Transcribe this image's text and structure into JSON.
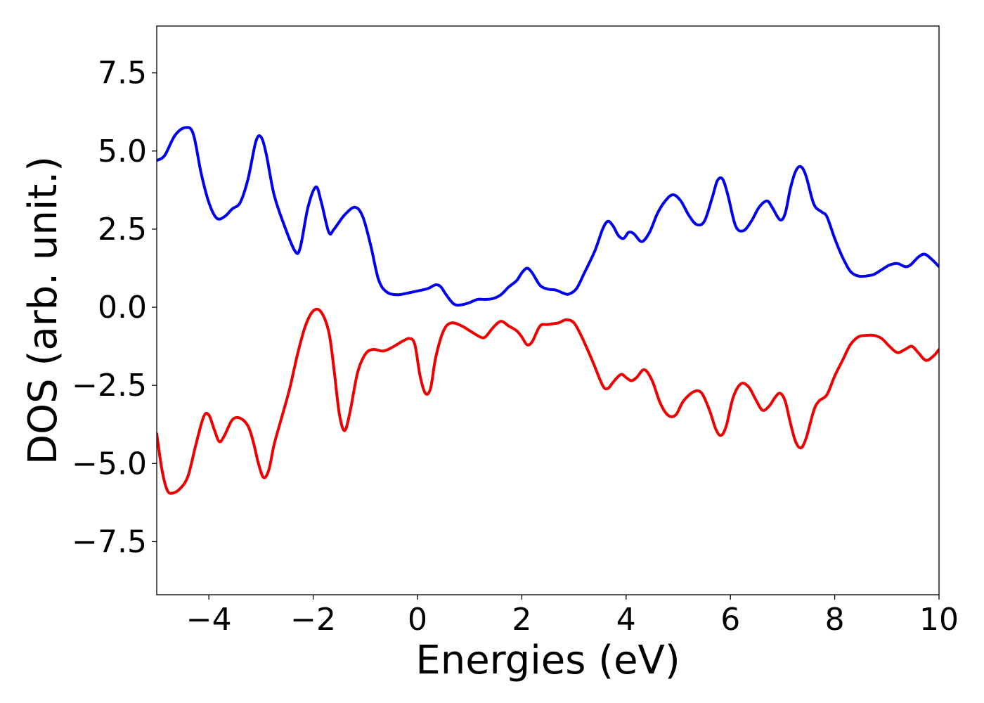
{
  "chart_data": {
    "type": "line",
    "title": "",
    "xlabel": "Energies (eV)",
    "ylabel": "DOS (arb. unit.)",
    "xlim": [
      -5,
      10
    ],
    "ylim": [
      -9.2,
      9.0
    ],
    "xticks": [
      -4,
      -2,
      0,
      2,
      4,
      6,
      8,
      10
    ],
    "xtick_labels": [
      "−4",
      "−2",
      "0",
      "2",
      "4",
      "6",
      "8",
      "10"
    ],
    "yticks": [
      -7.5,
      -5.0,
      -2.5,
      0.0,
      2.5,
      5.0,
      7.5
    ],
    "ytick_labels": [
      "−7.5",
      "−5.0",
      "−2.5",
      "0.0",
      "2.5",
      "5.0",
      "7.5"
    ],
    "grid": false,
    "legend": "none",
    "series": [
      {
        "color": "#0000ee",
        "points": [
          [
            -5.0,
            4.7
          ],
          [
            -4.85,
            4.85
          ],
          [
            -4.65,
            5.5
          ],
          [
            -4.45,
            5.75
          ],
          [
            -4.3,
            5.55
          ],
          [
            -4.15,
            4.3
          ],
          [
            -4.0,
            3.35
          ],
          [
            -3.85,
            2.85
          ],
          [
            -3.7,
            2.9
          ],
          [
            -3.55,
            3.15
          ],
          [
            -3.4,
            3.35
          ],
          [
            -3.25,
            4.1
          ],
          [
            -3.1,
            5.3
          ],
          [
            -3.0,
            5.45
          ],
          [
            -2.9,
            4.9
          ],
          [
            -2.75,
            3.6
          ],
          [
            -2.55,
            2.6
          ],
          [
            -2.35,
            1.8
          ],
          [
            -2.25,
            1.9
          ],
          [
            -2.1,
            3.2
          ],
          [
            -1.95,
            3.85
          ],
          [
            -1.85,
            3.4
          ],
          [
            -1.7,
            2.4
          ],
          [
            -1.6,
            2.5
          ],
          [
            -1.4,
            2.95
          ],
          [
            -1.2,
            3.2
          ],
          [
            -1.05,
            2.9
          ],
          [
            -0.9,
            2.0
          ],
          [
            -0.75,
            0.9
          ],
          [
            -0.6,
            0.5
          ],
          [
            -0.4,
            0.4
          ],
          [
            -0.2,
            0.45
          ],
          [
            0.0,
            0.52
          ],
          [
            0.2,
            0.6
          ],
          [
            0.35,
            0.72
          ],
          [
            0.45,
            0.65
          ],
          [
            0.55,
            0.4
          ],
          [
            0.7,
            0.1
          ],
          [
            0.85,
            0.08
          ],
          [
            1.0,
            0.15
          ],
          [
            1.15,
            0.25
          ],
          [
            1.3,
            0.25
          ],
          [
            1.45,
            0.28
          ],
          [
            1.6,
            0.4
          ],
          [
            1.75,
            0.65
          ],
          [
            1.9,
            0.85
          ],
          [
            2.0,
            1.1
          ],
          [
            2.1,
            1.25
          ],
          [
            2.2,
            1.1
          ],
          [
            2.35,
            0.7
          ],
          [
            2.5,
            0.58
          ],
          [
            2.65,
            0.55
          ],
          [
            2.8,
            0.45
          ],
          [
            2.9,
            0.42
          ],
          [
            3.05,
            0.6
          ],
          [
            3.2,
            1.1
          ],
          [
            3.4,
            1.8
          ],
          [
            3.55,
            2.5
          ],
          [
            3.65,
            2.75
          ],
          [
            3.75,
            2.6
          ],
          [
            3.85,
            2.3
          ],
          [
            3.95,
            2.2
          ],
          [
            4.05,
            2.4
          ],
          [
            4.15,
            2.35
          ],
          [
            4.3,
            2.1
          ],
          [
            4.45,
            2.4
          ],
          [
            4.6,
            3.0
          ],
          [
            4.75,
            3.4
          ],
          [
            4.9,
            3.6
          ],
          [
            5.05,
            3.4
          ],
          [
            5.2,
            2.95
          ],
          [
            5.35,
            2.65
          ],
          [
            5.5,
            2.75
          ],
          [
            5.65,
            3.5
          ],
          [
            5.75,
            4.05
          ],
          [
            5.85,
            4.1
          ],
          [
            5.95,
            3.6
          ],
          [
            6.1,
            2.6
          ],
          [
            6.25,
            2.45
          ],
          [
            6.4,
            2.75
          ],
          [
            6.55,
            3.2
          ],
          [
            6.7,
            3.4
          ],
          [
            6.8,
            3.2
          ],
          [
            6.95,
            2.8
          ],
          [
            7.05,
            3.0
          ],
          [
            7.15,
            3.8
          ],
          [
            7.25,
            4.35
          ],
          [
            7.35,
            4.5
          ],
          [
            7.45,
            4.2
          ],
          [
            7.6,
            3.3
          ],
          [
            7.75,
            3.05
          ],
          [
            7.85,
            2.9
          ],
          [
            8.0,
            2.2
          ],
          [
            8.15,
            1.6
          ],
          [
            8.3,
            1.15
          ],
          [
            8.45,
            1.0
          ],
          [
            8.6,
            1.0
          ],
          [
            8.75,
            1.05
          ],
          [
            8.9,
            1.2
          ],
          [
            9.05,
            1.35
          ],
          [
            9.2,
            1.4
          ],
          [
            9.35,
            1.3
          ],
          [
            9.45,
            1.35
          ],
          [
            9.6,
            1.6
          ],
          [
            9.72,
            1.7
          ],
          [
            9.85,
            1.55
          ],
          [
            10.0,
            1.3
          ]
        ]
      },
      {
        "color": "#ee0000",
        "points": [
          [
            -5.0,
            -4.05
          ],
          [
            -4.9,
            -5.2
          ],
          [
            -4.8,
            -5.85
          ],
          [
            -4.7,
            -5.95
          ],
          [
            -4.55,
            -5.8
          ],
          [
            -4.4,
            -5.4
          ],
          [
            -4.25,
            -4.4
          ],
          [
            -4.1,
            -3.5
          ],
          [
            -4.0,
            -3.45
          ],
          [
            -3.9,
            -3.9
          ],
          [
            -3.8,
            -4.3
          ],
          [
            -3.7,
            -4.1
          ],
          [
            -3.55,
            -3.6
          ],
          [
            -3.4,
            -3.55
          ],
          [
            -3.25,
            -3.8
          ],
          [
            -3.15,
            -4.3
          ],
          [
            -3.05,
            -5.0
          ],
          [
            -2.95,
            -5.45
          ],
          [
            -2.85,
            -5.2
          ],
          [
            -2.75,
            -4.4
          ],
          [
            -2.6,
            -3.5
          ],
          [
            -2.45,
            -2.6
          ],
          [
            -2.3,
            -1.5
          ],
          [
            -2.15,
            -0.6
          ],
          [
            -2.0,
            -0.12
          ],
          [
            -1.85,
            -0.15
          ],
          [
            -1.7,
            -0.8
          ],
          [
            -1.6,
            -2.0
          ],
          [
            -1.5,
            -3.4
          ],
          [
            -1.4,
            -3.95
          ],
          [
            -1.3,
            -3.4
          ],
          [
            -1.15,
            -2.1
          ],
          [
            -1.0,
            -1.5
          ],
          [
            -0.85,
            -1.35
          ],
          [
            -0.65,
            -1.4
          ],
          [
            -0.45,
            -1.25
          ],
          [
            -0.3,
            -1.1
          ],
          [
            -0.15,
            -1.0
          ],
          [
            -0.05,
            -1.2
          ],
          [
            0.05,
            -2.2
          ],
          [
            0.15,
            -2.75
          ],
          [
            0.25,
            -2.6
          ],
          [
            0.35,
            -1.6
          ],
          [
            0.5,
            -0.75
          ],
          [
            0.65,
            -0.5
          ],
          [
            0.85,
            -0.6
          ],
          [
            1.0,
            -0.75
          ],
          [
            1.2,
            -0.95
          ],
          [
            1.3,
            -0.95
          ],
          [
            1.45,
            -0.65
          ],
          [
            1.6,
            -0.45
          ],
          [
            1.75,
            -0.6
          ],
          [
            1.9,
            -0.75
          ],
          [
            2.0,
            -0.95
          ],
          [
            2.1,
            -1.2
          ],
          [
            2.2,
            -1.1
          ],
          [
            2.35,
            -0.6
          ],
          [
            2.5,
            -0.55
          ],
          [
            2.7,
            -0.5
          ],
          [
            2.85,
            -0.4
          ],
          [
            3.0,
            -0.5
          ],
          [
            3.15,
            -0.95
          ],
          [
            3.35,
            -1.7
          ],
          [
            3.55,
            -2.5
          ],
          [
            3.65,
            -2.6
          ],
          [
            3.75,
            -2.4
          ],
          [
            3.9,
            -2.15
          ],
          [
            4.0,
            -2.25
          ],
          [
            4.1,
            -2.35
          ],
          [
            4.2,
            -2.25
          ],
          [
            4.35,
            -2.0
          ],
          [
            4.5,
            -2.35
          ],
          [
            4.65,
            -3.05
          ],
          [
            4.8,
            -3.45
          ],
          [
            4.95,
            -3.45
          ],
          [
            5.1,
            -3.0
          ],
          [
            5.3,
            -2.7
          ],
          [
            5.45,
            -2.75
          ],
          [
            5.6,
            -3.3
          ],
          [
            5.72,
            -3.9
          ],
          [
            5.82,
            -4.1
          ],
          [
            5.92,
            -3.8
          ],
          [
            6.05,
            -2.9
          ],
          [
            6.2,
            -2.45
          ],
          [
            6.35,
            -2.55
          ],
          [
            6.5,
            -3.0
          ],
          [
            6.62,
            -3.3
          ],
          [
            6.75,
            -3.15
          ],
          [
            6.85,
            -2.9
          ],
          [
            6.95,
            -2.75
          ],
          [
            7.05,
            -3.0
          ],
          [
            7.15,
            -3.7
          ],
          [
            7.25,
            -4.3
          ],
          [
            7.35,
            -4.5
          ],
          [
            7.45,
            -4.2
          ],
          [
            7.6,
            -3.3
          ],
          [
            7.7,
            -3.0
          ],
          [
            7.85,
            -2.8
          ],
          [
            8.0,
            -2.2
          ],
          [
            8.15,
            -1.7
          ],
          [
            8.3,
            -1.2
          ],
          [
            8.45,
            -0.95
          ],
          [
            8.6,
            -0.9
          ],
          [
            8.75,
            -0.9
          ],
          [
            8.9,
            -1.0
          ],
          [
            9.05,
            -1.25
          ],
          [
            9.2,
            -1.45
          ],
          [
            9.35,
            -1.35
          ],
          [
            9.48,
            -1.25
          ],
          [
            9.6,
            -1.45
          ],
          [
            9.75,
            -1.7
          ],
          [
            9.9,
            -1.55
          ],
          [
            10.0,
            -1.35
          ]
        ]
      }
    ]
  }
}
